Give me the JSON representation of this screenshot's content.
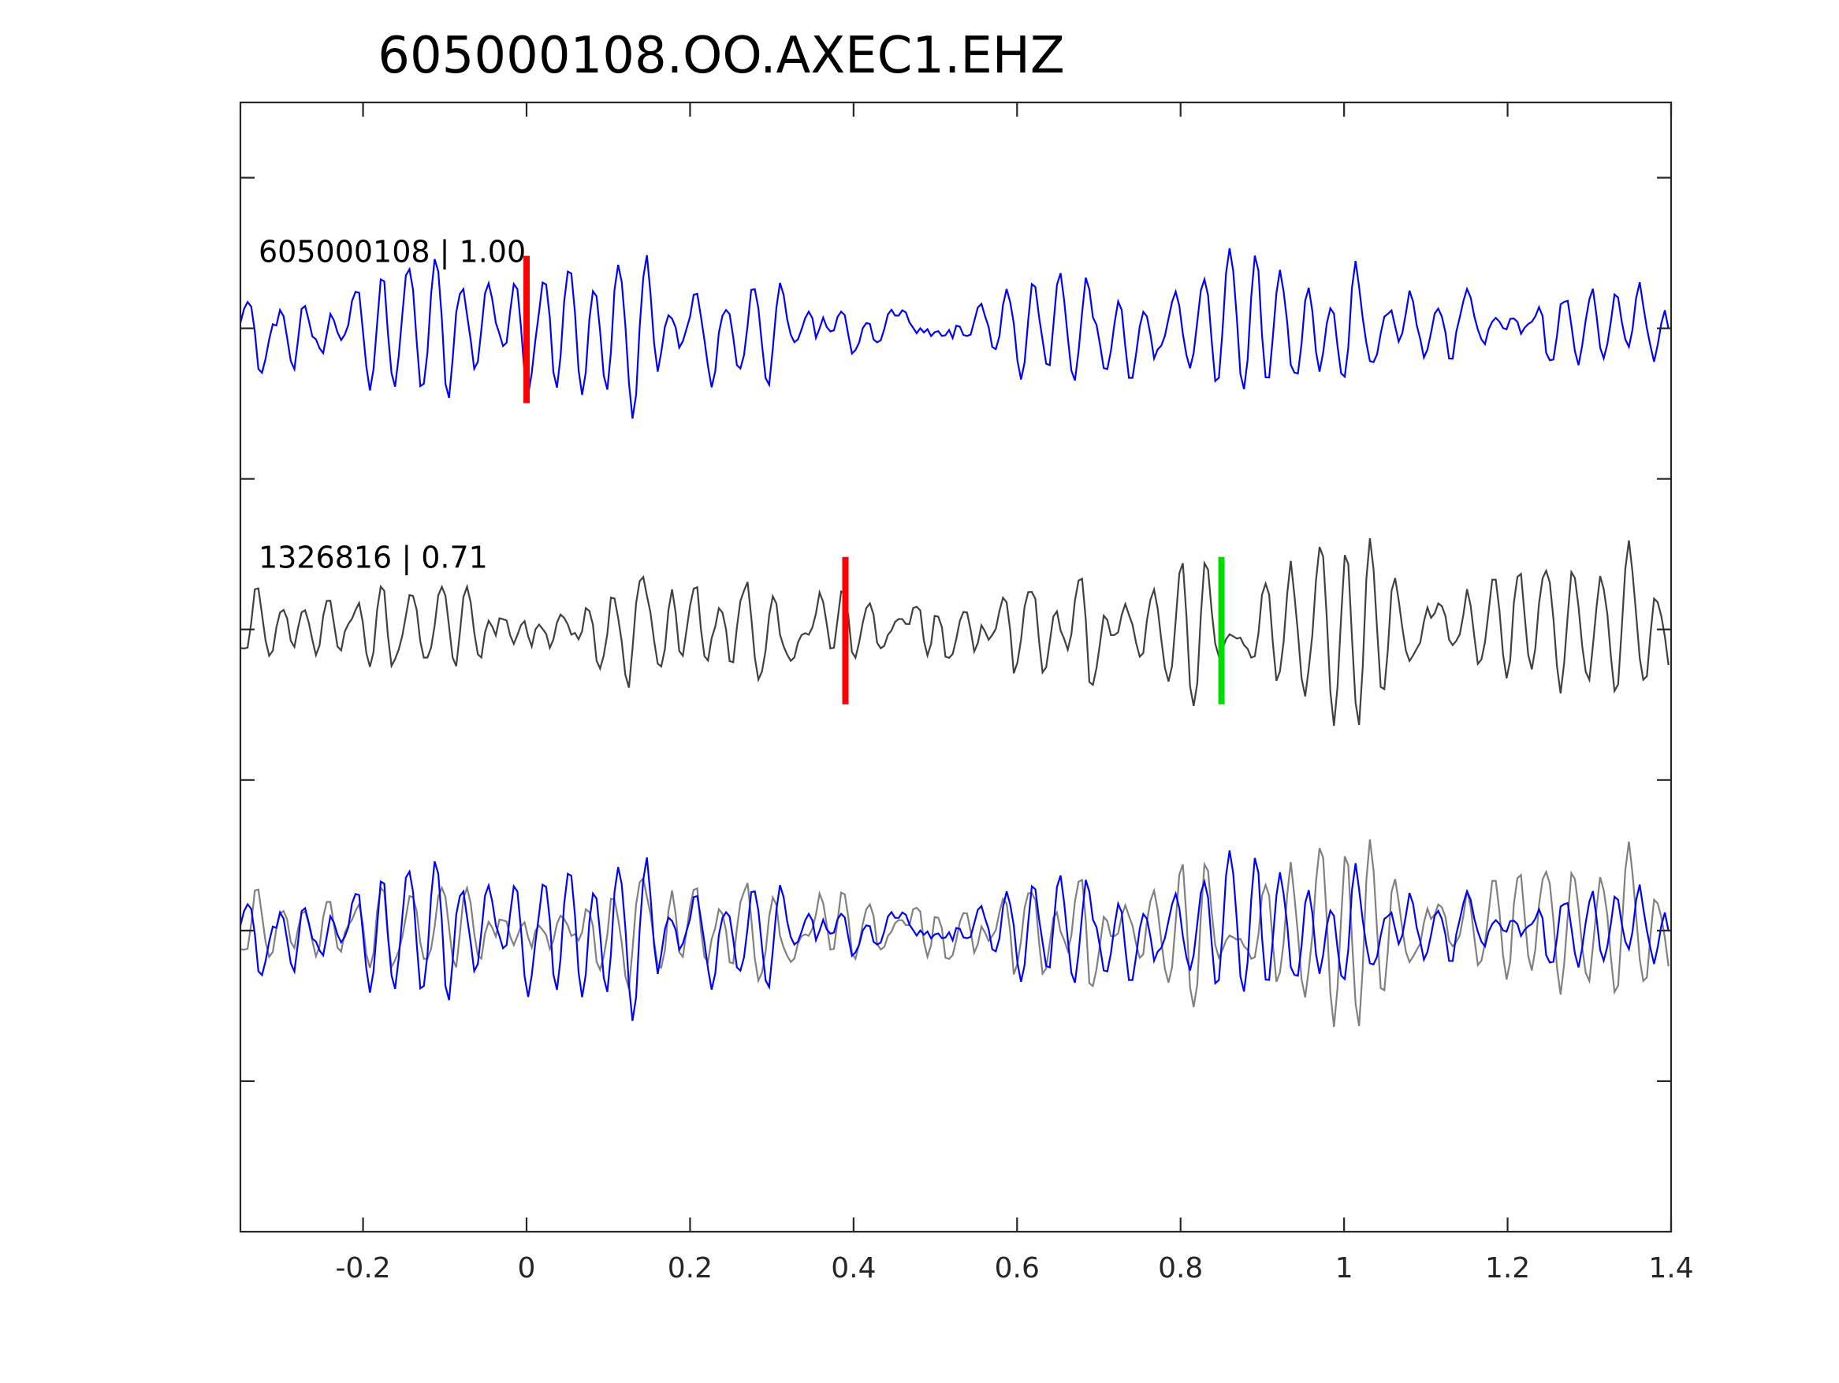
{
  "chart_data": {
    "type": "line",
    "title": "605000108.OO.AXEC1.EHZ",
    "xlabel": "",
    "ylabel": "",
    "xlim": [
      -0.35,
      1.4
    ],
    "xticks": [
      -0.2,
      0,
      0.2,
      0.4,
      0.6,
      0.8,
      1,
      1.2,
      1.4
    ],
    "xtick_labels": [
      "-0.2",
      "0",
      "0.2",
      "0.4",
      "0.6",
      "0.8",
      "1",
      "1.2",
      "1.4"
    ],
    "ylim": [
      0.5,
      4.25
    ],
    "yticks": [
      1.0,
      1.5,
      2.0,
      2.5,
      3.0,
      3.5,
      4.0
    ],
    "ytick_labels_shown": false,
    "grid": false,
    "sample_interval": 0.0044,
    "traces": [
      {
        "id": "605000108",
        "label": "605000108 | 1.00",
        "offset": 3.5,
        "amplitude": 0.3,
        "color": "#0000ff",
        "picks": [
          {
            "x": 0.0,
            "color": "#ff0000"
          }
        ]
      },
      {
        "id": "1326816",
        "label": "1326816 | 0.71",
        "offset": 2.5,
        "amplitude": 0.32,
        "color": "#404040",
        "picks": [
          {
            "x": 0.39,
            "color": "#ff0000"
          },
          {
            "x": 0.85,
            "color": "#00dd00"
          }
        ]
      }
    ],
    "overlay": {
      "offset": 1.5,
      "reference_color": "#808080",
      "primary_color": "#0000ff"
    }
  }
}
